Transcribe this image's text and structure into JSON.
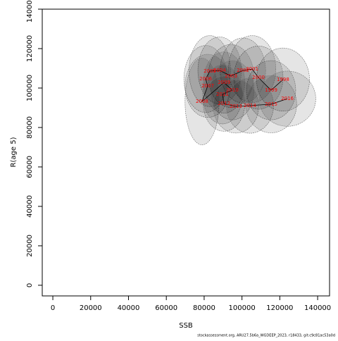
{
  "chart_data": {
    "type": "path",
    "x_label": "SSB",
    "y_label": "R(age 5)",
    "footer": "stockassessment.org, ARU27.5b6a_WGDEEP_2023, r18433, git:c9c81ac53a0d",
    "labels": [
      "1998",
      "1999",
      "2000",
      "2001",
      "2002",
      "2003",
      "2004",
      "2005",
      "2006",
      "2007",
      "2008",
      "2009",
      "2010",
      "2011",
      "2012",
      "2013",
      "2014",
      "2015",
      "2016"
    ],
    "x": [
      121700,
      115400,
      108700,
      105400,
      100500,
      94200,
      88200,
      83000,
      80800,
      81900,
      78900,
      90500,
      94900,
      89700,
      90500,
      96800,
      104200,
      115400,
      124000
    ],
    "y": [
      104300,
      98900,
      105300,
      109600,
      108900,
      106100,
      108900,
      108600,
      104600,
      101100,
      93200,
      102800,
      98900,
      96800,
      92100,
      90700,
      91100,
      91800,
      94600
    ],
    "x_error": [
      14000,
      13000,
      13000,
      12500,
      12000,
      12000,
      11500,
      11000,
      11500,
      12000,
      9000,
      11000,
      11500,
      10500,
      11000,
      12000,
      12500,
      13500,
      15000
    ],
    "y_error": [
      16000,
      15000,
      16000,
      17000,
      16500,
      16000,
      17000,
      18000,
      17000,
      16000,
      22000,
      15500,
      15000,
      15000,
      14000,
      13500,
      14000,
      14500,
      14000
    ],
    "line_color": "#000000",
    "label_color": "#ff0000",
    "ellipse_color": "#000000",
    "xlim": [
      -5600,
      146300
    ],
    "ylim": [
      -5400,
      140000
    ],
    "xticks": [
      0,
      20000,
      40000,
      60000,
      80000,
      100000,
      120000,
      140000
    ],
    "yticks": [
      0,
      20000,
      40000,
      60000,
      80000,
      100000,
      120000,
      140000
    ]
  }
}
